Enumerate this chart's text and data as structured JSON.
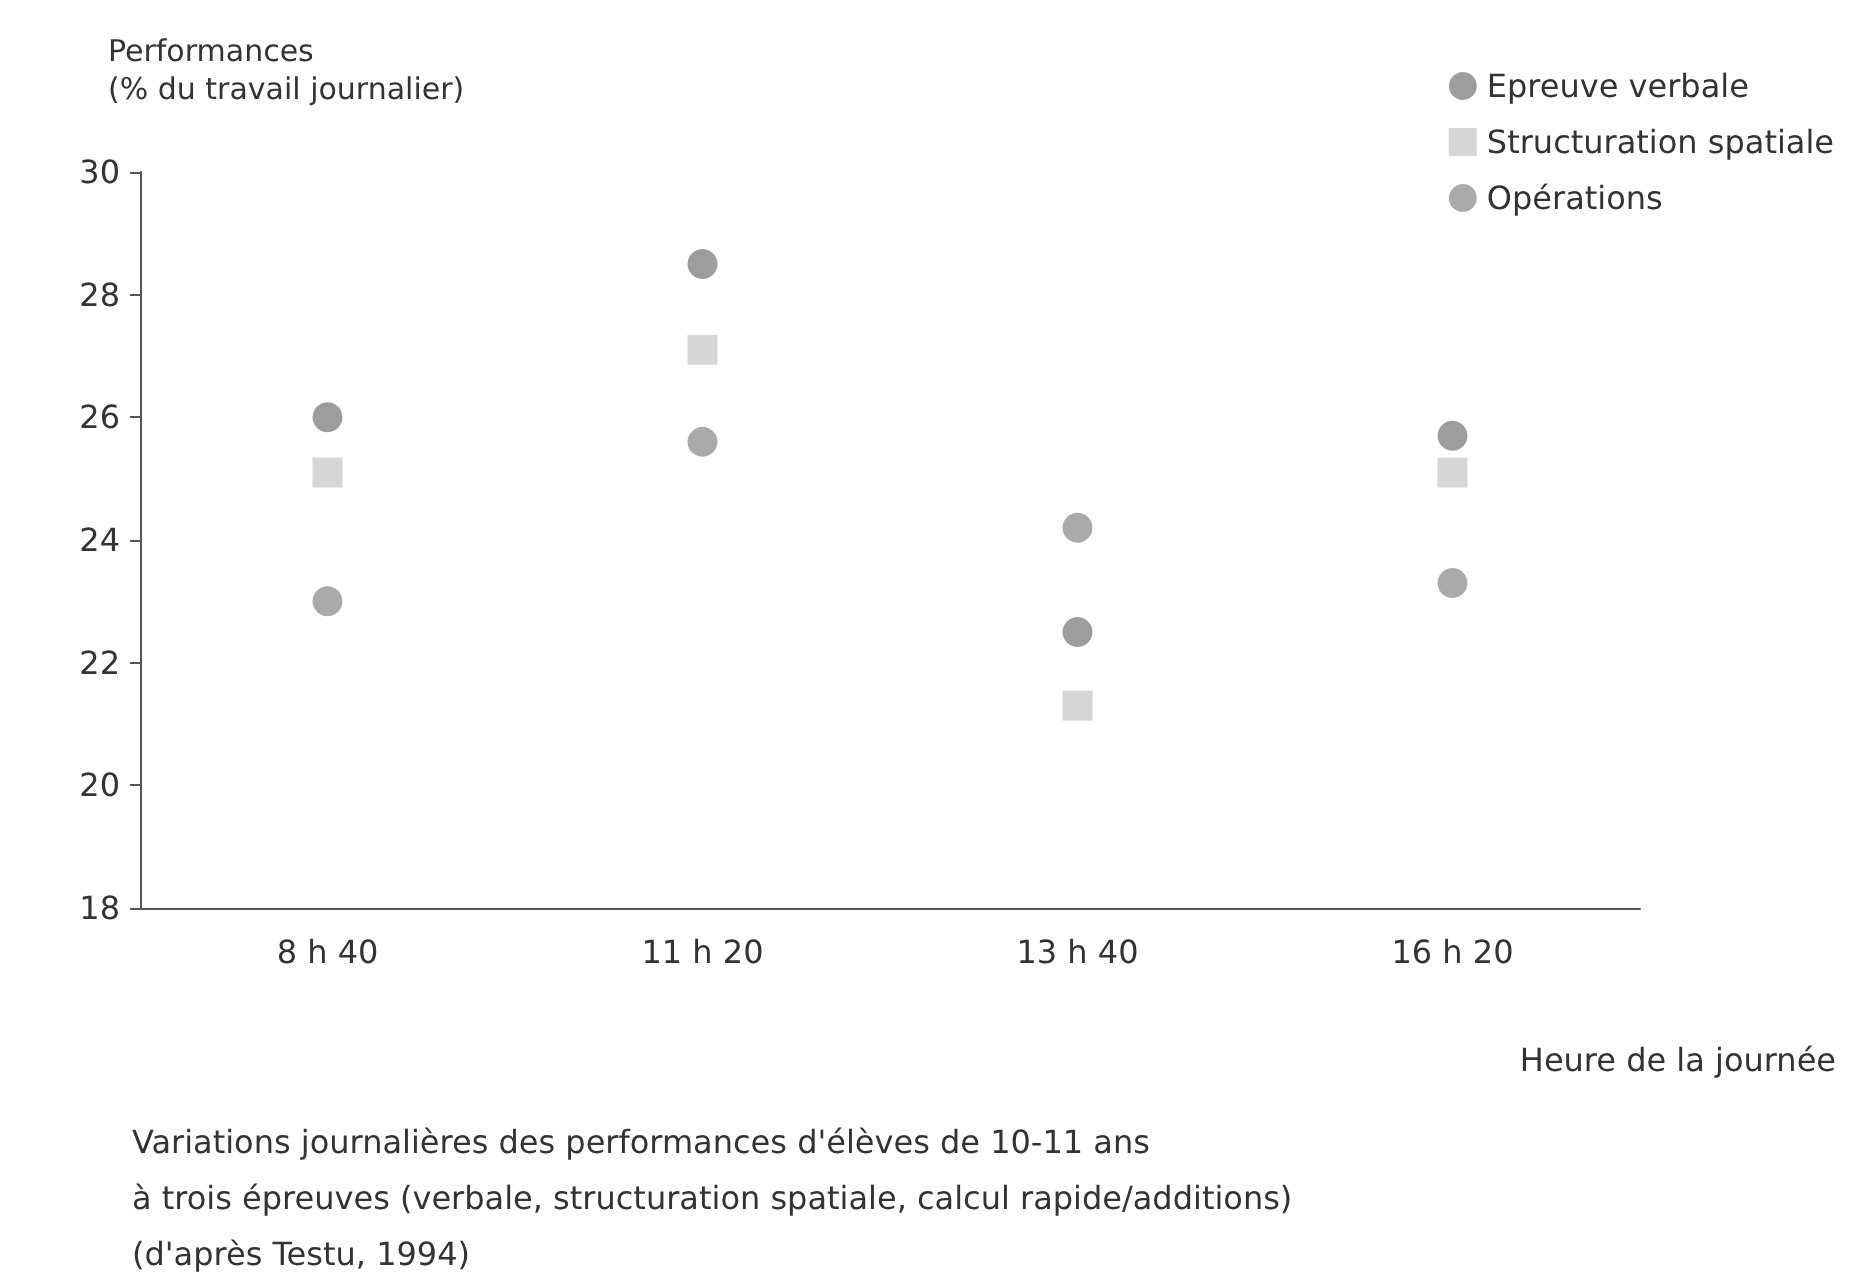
{
  "chart_data": {
    "type": "scatter",
    "ylabel": "Performances\n(% du travail journalier)",
    "xlabel": "Heure de la journée",
    "categories": [
      "8 h 40",
      "11 h 20",
      "13 h 40",
      "16 h 20"
    ],
    "series": [
      {
        "name": "Epreuve verbale",
        "color": "#858585",
        "marker": "circle",
        "values": [
          26,
          28.5,
          22.5,
          25.7
        ]
      },
      {
        "name": "Structuration spatiale",
        "color": "#cccccc",
        "marker": "square",
        "values": [
          25.1,
          27.1,
          21.3,
          25.1
        ]
      },
      {
        "name": "Opérations",
        "color": "#959595",
        "marker": "circle",
        "values": [
          23,
          25.6,
          24.2,
          23.3
        ]
      }
    ],
    "ylim": [
      18,
      30
    ],
    "yticks": [
      18,
      20,
      22,
      24,
      26,
      28,
      30
    ],
    "grid": false,
    "legend": "top right",
    "annotations": [
      "Variations journalières des performances d'élèves de 10-11 ans",
      "à trois épreuves (verbale, structuration spatiale, calcul rapide/additions)",
      "(d'après Testu, 1994)"
    ]
  }
}
